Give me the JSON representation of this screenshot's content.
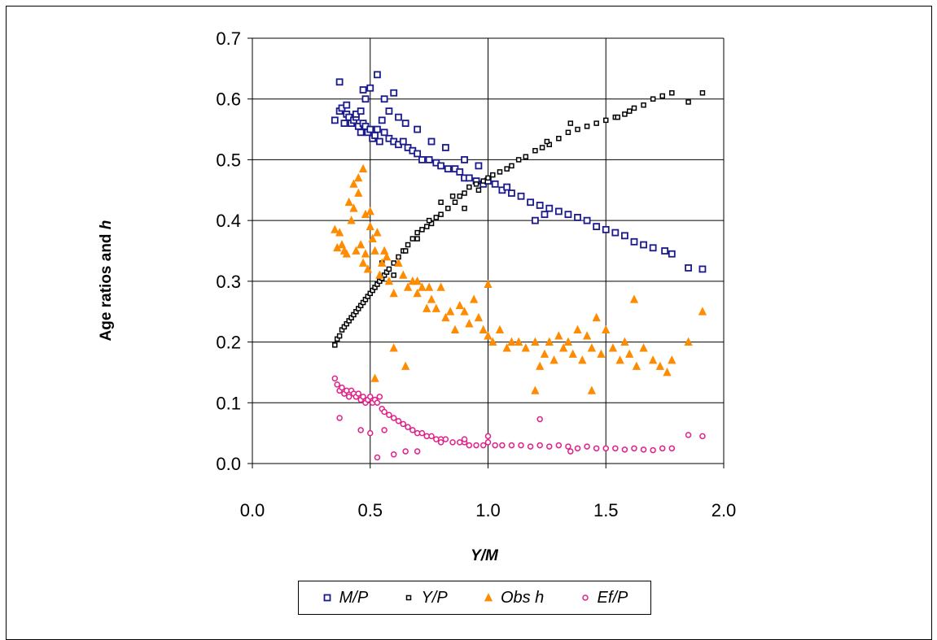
{
  "chart_data": {
    "type": "scatter",
    "xlabel": "Y/M",
    "ylabel": "Age ratios and h",
    "xlim": [
      0.0,
      2.0
    ],
    "ylim": [
      0.0,
      0.7
    ],
    "xticks": [
      "0.0",
      "0.5",
      "1.0",
      "1.5",
      "2.0"
    ],
    "yticks": [
      "0.0",
      "0.1",
      "0.2",
      "0.3",
      "0.4",
      "0.5",
      "0.6",
      "0.7"
    ],
    "grid": true,
    "legend_position": "bottom",
    "series": [
      {
        "name": "M/P",
        "marker": "square",
        "color": "#1a1a8c",
        "x": [
          0.35,
          0.37,
          0.38,
          0.39,
          0.4,
          0.41,
          0.42,
          0.43,
          0.44,
          0.45,
          0.46,
          0.47,
          0.48,
          0.49,
          0.5,
          0.51,
          0.52,
          0.53,
          0.54,
          0.56,
          0.58,
          0.6,
          0.62,
          0.64,
          0.66,
          0.68,
          0.7,
          0.72,
          0.75,
          0.78,
          0.8,
          0.83,
          0.86,
          0.88,
          0.9,
          0.92,
          0.95,
          0.98,
          1.0,
          1.03,
          1.06,
          1.1,
          1.14,
          1.18,
          1.22,
          1.26,
          1.3,
          1.34,
          1.38,
          1.42,
          1.46,
          1.5,
          1.54,
          1.58,
          1.62,
          1.66,
          1.7,
          1.75,
          1.78,
          1.85,
          1.91,
          0.37,
          0.47,
          0.5,
          0.53,
          0.56,
          0.6,
          0.4,
          0.44,
          0.46,
          0.48,
          0.55,
          0.58,
          0.62,
          0.65,
          0.7,
          0.76,
          0.82,
          0.9,
          0.96,
          1.08,
          1.2,
          1.24
        ],
        "y": [
          0.565,
          0.58,
          0.585,
          0.56,
          0.575,
          0.57,
          0.56,
          0.565,
          0.57,
          0.555,
          0.545,
          0.56,
          0.555,
          0.545,
          0.55,
          0.535,
          0.54,
          0.55,
          0.53,
          0.545,
          0.535,
          0.53,
          0.525,
          0.53,
          0.52,
          0.515,
          0.51,
          0.5,
          0.5,
          0.495,
          0.49,
          0.485,
          0.485,
          0.48,
          0.47,
          0.47,
          0.465,
          0.46,
          0.465,
          0.46,
          0.45,
          0.445,
          0.44,
          0.43,
          0.425,
          0.42,
          0.415,
          0.41,
          0.405,
          0.4,
          0.39,
          0.385,
          0.38,
          0.375,
          0.365,
          0.36,
          0.355,
          0.35,
          0.345,
          0.322,
          0.32,
          0.628,
          0.615,
          0.618,
          0.64,
          0.6,
          0.61,
          0.59,
          0.575,
          0.58,
          0.6,
          0.565,
          0.58,
          0.57,
          0.56,
          0.55,
          0.53,
          0.52,
          0.5,
          0.49,
          0.455,
          0.4,
          0.41
        ]
      },
      {
        "name": "Y/P",
        "marker": "square-small",
        "color": "#000000",
        "x": [
          0.35,
          0.36,
          0.37,
          0.38,
          0.39,
          0.4,
          0.41,
          0.42,
          0.43,
          0.44,
          0.45,
          0.46,
          0.47,
          0.48,
          0.49,
          0.5,
          0.51,
          0.52,
          0.53,
          0.54,
          0.55,
          0.56,
          0.57,
          0.58,
          0.6,
          0.62,
          0.64,
          0.66,
          0.68,
          0.7,
          0.72,
          0.74,
          0.76,
          0.78,
          0.8,
          0.83,
          0.86,
          0.88,
          0.9,
          0.92,
          0.95,
          0.98,
          1.0,
          1.02,
          1.05,
          1.08,
          1.1,
          1.13,
          1.16,
          1.2,
          1.23,
          1.26,
          1.3,
          1.34,
          1.38,
          1.42,
          1.46,
          1.5,
          1.54,
          1.58,
          1.62,
          1.66,
          1.7,
          1.74,
          1.78,
          1.85,
          1.91,
          0.55,
          0.6,
          0.65,
          0.7,
          0.75,
          0.8,
          0.85,
          0.9,
          0.96,
          1.25,
          1.35,
          1.55,
          1.6
        ],
        "y": [
          0.195,
          0.205,
          0.21,
          0.22,
          0.225,
          0.23,
          0.235,
          0.24,
          0.245,
          0.25,
          0.255,
          0.26,
          0.265,
          0.27,
          0.275,
          0.28,
          0.285,
          0.29,
          0.295,
          0.3,
          0.305,
          0.31,
          0.315,
          0.32,
          0.33,
          0.34,
          0.35,
          0.36,
          0.37,
          0.38,
          0.385,
          0.39,
          0.395,
          0.405,
          0.41,
          0.42,
          0.43,
          0.44,
          0.445,
          0.455,
          0.46,
          0.465,
          0.47,
          0.475,
          0.48,
          0.485,
          0.49,
          0.5,
          0.505,
          0.515,
          0.52,
          0.525,
          0.535,
          0.545,
          0.55,
          0.555,
          0.56,
          0.565,
          0.57,
          0.575,
          0.585,
          0.59,
          0.6,
          0.605,
          0.61,
          0.595,
          0.61,
          0.33,
          0.31,
          0.35,
          0.37,
          0.4,
          0.43,
          0.44,
          0.42,
          0.45,
          0.53,
          0.56,
          0.57,
          0.58
        ]
      },
      {
        "name": "Obs h",
        "marker": "triangle",
        "color": "#ff8c00",
        "x": [
          0.35,
          0.36,
          0.37,
          0.38,
          0.39,
          0.4,
          0.41,
          0.42,
          0.43,
          0.44,
          0.45,
          0.46,
          0.47,
          0.48,
          0.49,
          0.5,
          0.51,
          0.52,
          0.53,
          0.54,
          0.55,
          0.56,
          0.57,
          0.58,
          0.6,
          0.62,
          0.64,
          0.66,
          0.68,
          0.7,
          0.72,
          0.74,
          0.76,
          0.78,
          0.8,
          0.82,
          0.84,
          0.86,
          0.88,
          0.9,
          0.92,
          0.94,
          0.96,
          0.98,
          1.0,
          1.02,
          1.05,
          1.08,
          1.1,
          1.13,
          1.16,
          1.2,
          1.22,
          1.24,
          1.26,
          1.28,
          1.3,
          1.32,
          1.34,
          1.36,
          1.38,
          1.4,
          1.42,
          1.44,
          1.46,
          1.48,
          1.5,
          1.53,
          1.56,
          1.58,
          1.6,
          1.63,
          1.66,
          1.7,
          1.73,
          1.76,
          1.78,
          1.85,
          1.91,
          0.45,
          0.47,
          0.43,
          0.48,
          0.5,
          0.52,
          0.6,
          0.65,
          0.7,
          0.75,
          1.0,
          1.2,
          1.44,
          1.62
        ],
        "y": [
          0.385,
          0.355,
          0.38,
          0.36,
          0.35,
          0.345,
          0.43,
          0.4,
          0.42,
          0.35,
          0.445,
          0.36,
          0.33,
          0.345,
          0.32,
          0.415,
          0.37,
          0.35,
          0.38,
          0.31,
          0.33,
          0.35,
          0.34,
          0.3,
          0.28,
          0.33,
          0.31,
          0.29,
          0.3,
          0.28,
          0.29,
          0.255,
          0.27,
          0.255,
          0.29,
          0.24,
          0.25,
          0.22,
          0.26,
          0.25,
          0.23,
          0.27,
          0.24,
          0.22,
          0.21,
          0.2,
          0.22,
          0.19,
          0.2,
          0.2,
          0.19,
          0.2,
          0.16,
          0.18,
          0.2,
          0.17,
          0.21,
          0.19,
          0.2,
          0.18,
          0.22,
          0.17,
          0.21,
          0.19,
          0.24,
          0.18,
          0.22,
          0.19,
          0.17,
          0.2,
          0.18,
          0.16,
          0.19,
          0.17,
          0.16,
          0.15,
          0.17,
          0.2,
          0.25,
          0.47,
          0.485,
          0.46,
          0.41,
          0.39,
          0.14,
          0.19,
          0.16,
          0.3,
          0.29,
          0.295,
          0.12,
          0.12,
          0.27
        ]
      },
      {
        "name": "Ef/P",
        "marker": "circle",
        "color": "#e0218a",
        "x": [
          0.35,
          0.36,
          0.37,
          0.38,
          0.39,
          0.4,
          0.41,
          0.42,
          0.43,
          0.44,
          0.45,
          0.46,
          0.47,
          0.48,
          0.49,
          0.5,
          0.51,
          0.52,
          0.53,
          0.54,
          0.55,
          0.56,
          0.58,
          0.6,
          0.62,
          0.64,
          0.66,
          0.68,
          0.7,
          0.72,
          0.74,
          0.76,
          0.78,
          0.8,
          0.82,
          0.85,
          0.88,
          0.9,
          0.92,
          0.95,
          0.98,
          1.0,
          1.03,
          1.06,
          1.1,
          1.14,
          1.18,
          1.22,
          1.26,
          1.3,
          1.34,
          1.38,
          1.42,
          1.46,
          1.5,
          1.54,
          1.58,
          1.62,
          1.66,
          1.7,
          1.74,
          1.78,
          1.85,
          1.91,
          0.37,
          0.46,
          0.5,
          0.53,
          0.56,
          0.6,
          0.65,
          0.7,
          0.8,
          0.9,
          1.0,
          1.22,
          1.35
        ],
        "y": [
          0.14,
          0.13,
          0.12,
          0.125,
          0.115,
          0.12,
          0.11,
          0.12,
          0.115,
          0.11,
          0.115,
          0.105,
          0.11,
          0.1,
          0.105,
          0.11,
          0.1,
          0.105,
          0.1,
          0.11,
          0.09,
          0.085,
          0.08,
          0.075,
          0.07,
          0.065,
          0.06,
          0.055,
          0.05,
          0.05,
          0.045,
          0.045,
          0.04,
          0.04,
          0.04,
          0.035,
          0.035,
          0.035,
          0.03,
          0.03,
          0.03,
          0.035,
          0.03,
          0.03,
          0.03,
          0.03,
          0.028,
          0.03,
          0.028,
          0.03,
          0.028,
          0.025,
          0.028,
          0.025,
          0.025,
          0.025,
          0.023,
          0.025,
          0.023,
          0.022,
          0.025,
          0.025,
          0.047,
          0.045,
          0.075,
          0.055,
          0.05,
          0.01,
          0.055,
          0.015,
          0.02,
          0.02,
          0.035,
          0.04,
          0.045,
          0.073,
          0.02
        ]
      }
    ]
  }
}
